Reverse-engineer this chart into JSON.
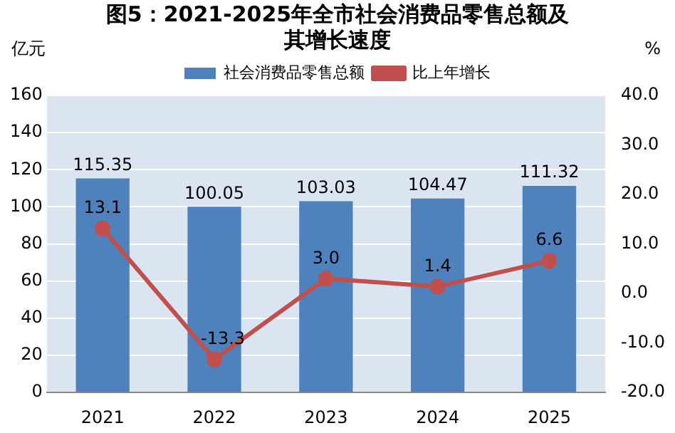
{
  "chart_data": {
    "type": "bar",
    "title": "图5：2021-2025年全市社会消费品零售总额及其增长速度",
    "ylabel": "亿元",
    "y2label": "%",
    "categories": [
      "2021",
      "2022",
      "2023",
      "2024",
      "2025"
    ],
    "series": [
      {
        "name": "社会消费品零售总额",
        "color": "#4f81bd",
        "values": [
          115.35,
          100.05,
          103.03,
          104.47,
          111.32
        ],
        "value_labels": [
          "115.35",
          "100.05",
          "103.03",
          "104.47",
          "111.32"
        ]
      },
      {
        "name": "比上年增长",
        "type": "line",
        "axis": "y2",
        "color": "#c0504d",
        "marker": "circle",
        "values": [
          13.1,
          -13.3,
          3.0,
          1.4,
          6.6
        ],
        "value_labels": [
          "13.1",
          "-13.3",
          "3.0",
          "1.4",
          "6.6"
        ]
      }
    ],
    "ylim": [
      0,
      160
    ],
    "yticks": [
      0,
      20,
      40,
      60,
      80,
      100,
      120,
      140,
      160
    ],
    "y2lim": [
      -20,
      40
    ],
    "y2ticks": [
      {
        "value": -20,
        "label": "-20.0"
      },
      {
        "value": -10,
        "label": "-10.0"
      },
      {
        "value": 0,
        "label": "0.0"
      },
      {
        "value": 10,
        "label": "10.0"
      },
      {
        "value": 20,
        "label": "20.0"
      },
      {
        "value": 30,
        "label": "30.0"
      },
      {
        "value": 40,
        "label": "40.0"
      }
    ],
    "grid": "y",
    "legend": "top"
  }
}
